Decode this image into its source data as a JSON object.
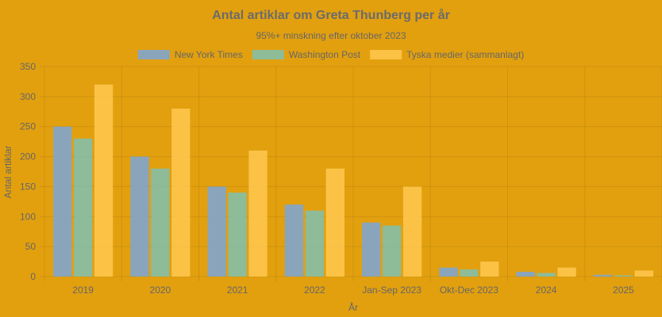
{
  "chart_data": {
    "type": "bar",
    "title": "Antal artiklar om Greta Thunberg per år",
    "subtitle": "95%+ minskning efter oktober 2023",
    "xlabel": "År",
    "ylabel": "Antal artiklar",
    "ylim": [
      0,
      350
    ],
    "yticks": [
      0,
      50,
      100,
      150,
      200,
      250,
      300,
      350
    ],
    "grid": true,
    "legend_position": "top",
    "categories": [
      "2019",
      "2020",
      "2021",
      "2022",
      "Jan-Sep 2023",
      "Okt-Dec 2023",
      "2024",
      "2025"
    ],
    "series": [
      {
        "name": "New York Times",
        "color": "#7aa6d9",
        "values": [
          250,
          200,
          150,
          120,
          90,
          15,
          8,
          3
        ]
      },
      {
        "name": "Washington Post",
        "color": "#7fbfb0",
        "values": [
          230,
          180,
          140,
          110,
          85,
          12,
          6,
          2
        ]
      },
      {
        "name": "Tyska medier (sammanlagt)",
        "color": "#ffc850",
        "values": [
          320,
          280,
          210,
          180,
          150,
          25,
          15,
          10
        ]
      }
    ]
  }
}
